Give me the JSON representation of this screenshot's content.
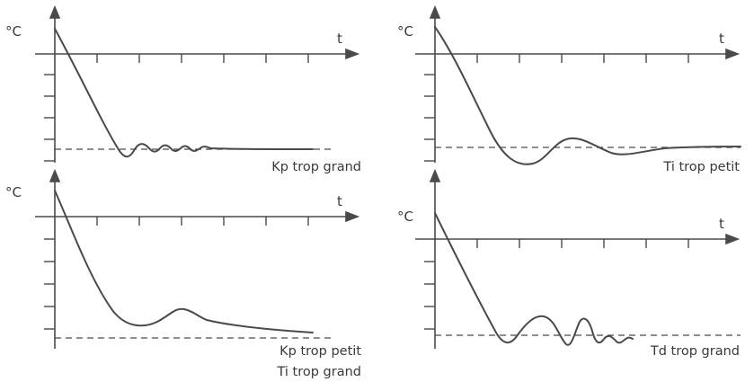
{
  "panels": [
    {
      "y_label": "°C",
      "x_label": "t",
      "caption": [
        "Kp trop grand"
      ],
      "behavior": "fast damped oscillation around setpoint"
    },
    {
      "y_label": "°C",
      "x_label": "t",
      "caption": [
        "Ti trop petit"
      ],
      "behavior": "undershoot with slow overshoot"
    },
    {
      "y_label": "°C",
      "x_label": "t",
      "caption": [
        "Kp trop petit",
        "Ti trop grand"
      ],
      "behavior": "slow approach, never reaches setpoint"
    },
    {
      "y_label": "°C",
      "x_label": "t",
      "caption": [
        "Td trop grand"
      ],
      "behavior": "irregular oscillations"
    }
  ],
  "colors": {
    "line": "#4a4a4a",
    "text": "#3a3a3a"
  }
}
